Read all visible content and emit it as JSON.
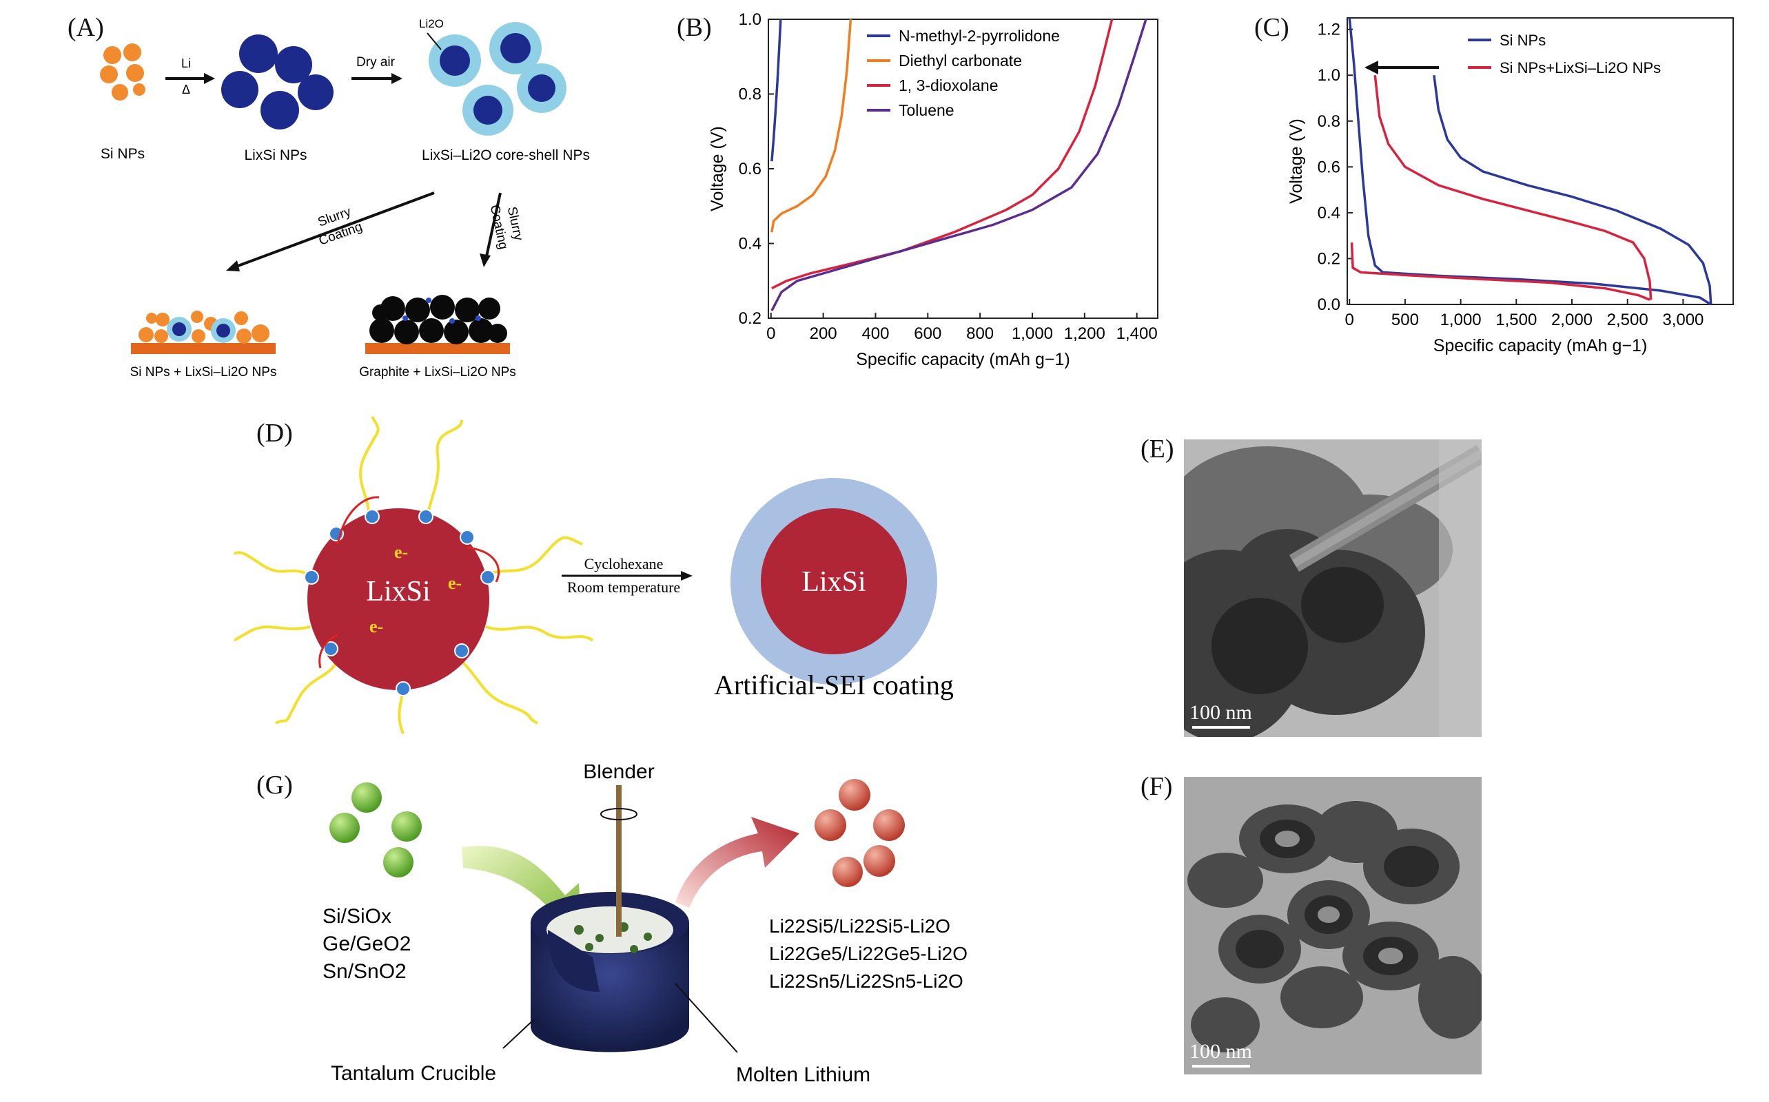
{
  "panels": {
    "a": {
      "label": "(A)",
      "si_np": "Si NPs",
      "lixsi_np": "LixSi NPs",
      "core_shell": "LixSi–Li2O core-shell NPs",
      "li2o": "Li2O",
      "step1_top": "Li",
      "step1_bottom": "Δ",
      "step2": "Dry air",
      "slurry_left_1": "Slurry",
      "slurry_left_2": "Coating",
      "slurry_right_1": "Slurry",
      "slurry_right_2": "Coating",
      "product_si": "Si NPs + LixSi–Li2O NPs",
      "product_graphite": "Graphite + LixSi–Li2O NPs"
    },
    "b": {
      "label": "(B)"
    },
    "c": {
      "label": "(C)"
    },
    "d": {
      "label": "(D)",
      "core": "LixSi",
      "electron": "e-",
      "arrow_top": "Cyclohexane",
      "arrow_bottom": "Room temperature",
      "product_core": "LixSi",
      "caption": "Artificial-SEI coating"
    },
    "e": {
      "label": "(E)",
      "scalebar": "100 nm"
    },
    "f": {
      "label": "(F)",
      "scalebar": "100 nm"
    },
    "g": {
      "label": "(G)",
      "blender": "Blender",
      "inputs": [
        "Si/SiOx",
        "Ge/GeO2",
        "Sn/SnO2"
      ],
      "outputs": [
        "Li22Si5/Li22Si5-Li2O",
        "Li22Ge5/Li22Ge5-Li2O",
        "Li22Sn5/Li22Sn5-Li2O"
      ],
      "crucible": "Tantalum Crucible",
      "molten": "Molten Lithium"
    }
  },
  "chart_data": [
    {
      "id": "B",
      "type": "line",
      "xlabel": "Specific capacity (mAh g−1)",
      "ylabel": "Voltage (V)",
      "xlim": [
        -10,
        1480
      ],
      "ylim": [
        0.2,
        1.0
      ],
      "xticks": [
        0,
        200,
        400,
        600,
        800,
        1000,
        1200,
        1400
      ],
      "xtick_labels": [
        "0",
        "200",
        "400",
        "600",
        "800",
        "1,000",
        "1,200",
        "1,400"
      ],
      "yticks": [
        0.2,
        0.4,
        0.6,
        0.8,
        1.0
      ],
      "ytick_labels": [
        "0.2",
        "0.4",
        "0.6",
        "0.8",
        "1.0"
      ],
      "legend": "top-right",
      "series": [
        {
          "name": "N-methyl-2-pyrrolidone",
          "color": "#2b3a9a",
          "points": [
            [
              3,
              0.62
            ],
            [
              10,
              0.68
            ],
            [
              18,
              0.76
            ],
            [
              25,
              0.84
            ],
            [
              32,
              0.93
            ],
            [
              37,
              1.0
            ]
          ]
        },
        {
          "name": "Diethyl carbonate",
          "color": "#f07d1e",
          "points": [
            [
              3,
              0.43
            ],
            [
              10,
              0.46
            ],
            [
              40,
              0.48
            ],
            [
              100,
              0.5
            ],
            [
              160,
              0.53
            ],
            [
              210,
              0.58
            ],
            [
              245,
              0.65
            ],
            [
              270,
              0.74
            ],
            [
              290,
              0.86
            ],
            [
              305,
              1.0
            ]
          ]
        },
        {
          "name": "1, 3-dioxolane",
          "color": "#d8233f",
          "points": [
            [
              3,
              0.28
            ],
            [
              60,
              0.3
            ],
            [
              150,
              0.32
            ],
            [
              300,
              0.345
            ],
            [
              500,
              0.38
            ],
            [
              700,
              0.43
            ],
            [
              900,
              0.49
            ],
            [
              1000,
              0.53
            ],
            [
              1100,
              0.6
            ],
            [
              1180,
              0.7
            ],
            [
              1240,
              0.82
            ],
            [
              1280,
              0.93
            ],
            [
              1305,
              1.0
            ]
          ]
        },
        {
          "name": "Toluene",
          "color": "#5b2d8f",
          "points": [
            [
              3,
              0.22
            ],
            [
              40,
              0.27
            ],
            [
              100,
              0.3
            ],
            [
              250,
              0.33
            ],
            [
              450,
              0.37
            ],
            [
              650,
              0.41
            ],
            [
              850,
              0.45
            ],
            [
              1000,
              0.49
            ],
            [
              1150,
              0.55
            ],
            [
              1250,
              0.64
            ],
            [
              1330,
              0.77
            ],
            [
              1390,
              0.9
            ],
            [
              1435,
              1.0
            ]
          ]
        }
      ]
    },
    {
      "id": "C",
      "type": "line",
      "xlabel": "Specific capacity (mAh g−1)",
      "ylabel": "Voltage (V)",
      "xlim": [
        -20,
        3450
      ],
      "ylim": [
        0.0,
        1.25
      ],
      "xticks": [
        0,
        500,
        1000,
        1500,
        2000,
        2500,
        3000
      ],
      "xtick_labels": [
        "0",
        "500",
        "1,000",
        "1,500",
        "2,000",
        "2,500",
        "3,000"
      ],
      "yticks": [
        0.0,
        0.2,
        0.4,
        0.6,
        0.8,
        1.0,
        1.2
      ],
      "ytick_labels": [
        "0.0",
        "0.2",
        "0.4",
        "0.6",
        "0.8",
        "1.0",
        "1.2"
      ],
      "legend": "top-right",
      "series": [
        {
          "name": "Si NPs",
          "color": "#2b3a9a",
          "points": [
            [
              0,
              1.25
            ],
            [
              40,
              1.05
            ],
            [
              80,
              0.8
            ],
            [
              120,
              0.55
            ],
            [
              170,
              0.3
            ],
            [
              230,
              0.17
            ],
            [
              300,
              0.14
            ],
            [
              800,
              0.125
            ],
            [
              1500,
              0.11
            ],
            [
              2200,
              0.09
            ],
            [
              2800,
              0.06
            ],
            [
              3150,
              0.03
            ],
            [
              3250,
              0.0
            ]
          ]
        },
        {
          "name": "Si NPs",
          "color": "#2b3a9a",
          "points": [
            [
              760,
              1.0
            ],
            [
              800,
              0.85
            ],
            [
              880,
              0.72
            ],
            [
              1000,
              0.64
            ],
            [
              1200,
              0.58
            ],
            [
              1600,
              0.52
            ],
            [
              2000,
              0.47
            ],
            [
              2400,
              0.41
            ],
            [
              2800,
              0.33
            ],
            [
              3050,
              0.26
            ],
            [
              3180,
              0.18
            ],
            [
              3240,
              0.08
            ],
            [
              3250,
              0.0
            ]
          ]
        },
        {
          "name": "Si NPs+LixSi–Li2O NPs",
          "color": "#d8233f",
          "points": [
            [
              20,
              0.27
            ],
            [
              30,
              0.16
            ],
            [
              100,
              0.14
            ],
            [
              600,
              0.125
            ],
            [
              1200,
              0.11
            ],
            [
              1800,
              0.095
            ],
            [
              2300,
              0.07
            ],
            [
              2600,
              0.04
            ],
            [
              2700,
              0.02
            ]
          ]
        },
        {
          "name": "Si NPs+LixSi–Li2O NPs",
          "color": "#d8233f",
          "points": [
            [
              230,
              1.0
            ],
            [
              270,
              0.82
            ],
            [
              350,
              0.7
            ],
            [
              500,
              0.6
            ],
            [
              800,
              0.52
            ],
            [
              1200,
              0.46
            ],
            [
              1600,
              0.41
            ],
            [
              2000,
              0.36
            ],
            [
              2300,
              0.32
            ],
            [
              2550,
              0.27
            ],
            [
              2650,
              0.2
            ],
            [
              2700,
              0.1
            ],
            [
              2710,
              0.02
            ]
          ]
        }
      ],
      "legend_entries": [
        "Si NPs",
        "Si NPs+LixSi–Li2O NPs"
      ]
    }
  ]
}
